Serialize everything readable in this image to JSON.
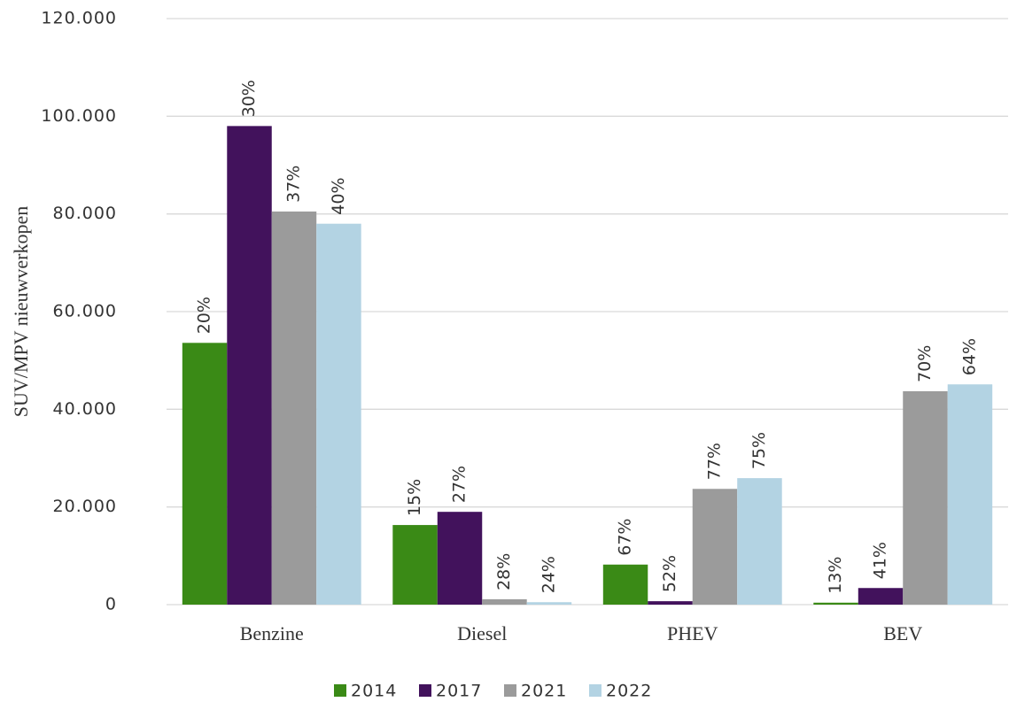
{
  "chart_data": {
    "type": "bar",
    "y_label": "SUV/MPV nieuwverkopen",
    "categories": [
      "Benzine",
      "Diesel",
      "PHEV",
      "BEV"
    ],
    "series": [
      {
        "name": "2014",
        "color": "#3a8a16",
        "values": [
          53600,
          16300,
          8200,
          400
        ],
        "labels": [
          "20%",
          "15%",
          "67%",
          "13%"
        ]
      },
      {
        "name": "2017",
        "color": "#42125c",
        "values": [
          98000,
          19000,
          700,
          3400
        ],
        "labels": [
          "30%",
          "27%",
          "52%",
          "41%"
        ]
      },
      {
        "name": "2021",
        "color": "#9b9b9b",
        "values": [
          80500,
          1100,
          23700,
          43700
        ],
        "labels": [
          "37%",
          "28%",
          "77%",
          "70%"
        ]
      },
      {
        "name": "2022",
        "color": "#b3d3e3",
        "values": [
          78000,
          500,
          25900,
          45100
        ],
        "labels": [
          "40%",
          "24%",
          "75%",
          "64%"
        ]
      }
    ],
    "ylim": [
      0,
      120000
    ],
    "yticks": [
      0,
      {
        "value": 20000,
        "label": "20.000"
      },
      {
        "value": 40000,
        "label": "40.000"
      },
      {
        "value": 60000,
        "label": "60.000"
      },
      {
        "value": 80000,
        "label": "80.000"
      },
      {
        "value": 100000,
        "label": "100.000"
      },
      {
        "value": 120000,
        "label": "120.000"
      }
    ],
    "grid": true,
    "legend": "bottom"
  }
}
